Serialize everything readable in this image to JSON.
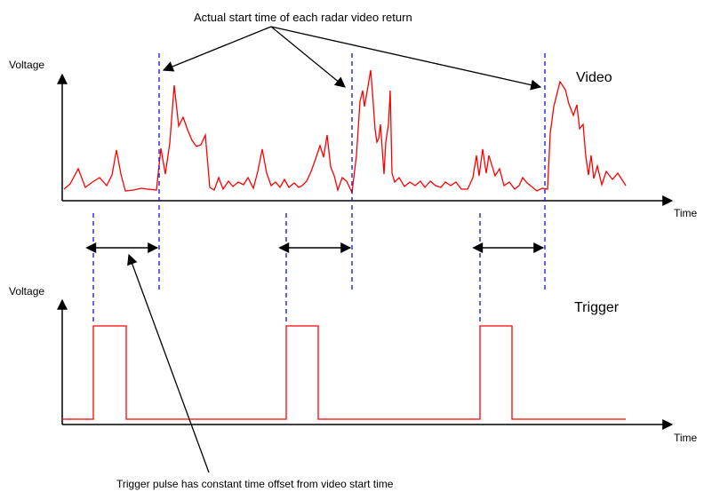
{
  "annotations": {
    "top": "Actual start time of each radar video return",
    "bottom": "Trigger pulse has constant time offset from video start time"
  },
  "video_panel": {
    "title": "Video",
    "ylabel": "Voltage",
    "xlabel": "Time"
  },
  "trigger_panel": {
    "title": "Trigger",
    "ylabel": "Voltage",
    "xlabel": "Time"
  },
  "colors": {
    "signal": "#ff0000",
    "marker": "#1f1fd6",
    "axes": "#000000"
  }
}
